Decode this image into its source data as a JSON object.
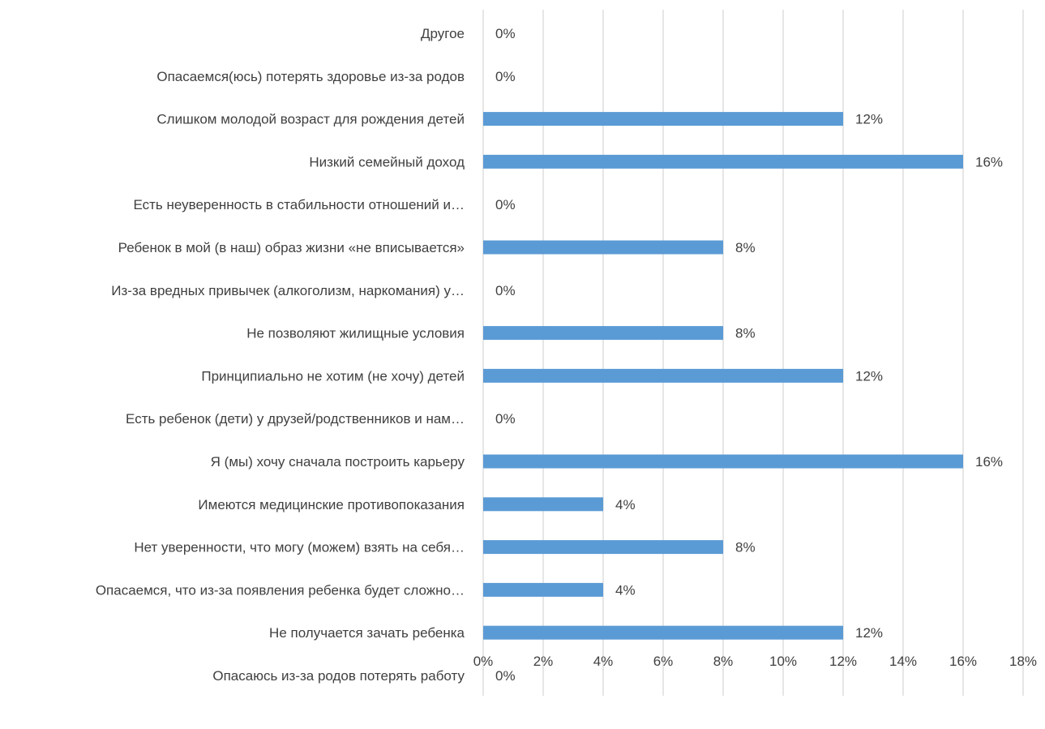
{
  "chart_data": {
    "type": "bar",
    "orientation": "horizontal",
    "title": "",
    "xlabel": "",
    "ylabel": "",
    "xlim": [
      0,
      18
    ],
    "grid": true,
    "legend": "none",
    "ticks": [
      "0%",
      "2%",
      "4%",
      "6%",
      "8%",
      "10%",
      "12%",
      "14%",
      "16%",
      "18%"
    ],
    "categories": [
      "Другое",
      "Опасаемся(юсь) потерять здоровье из-за родов",
      "Слишком молодой возраст для рождения детей",
      "Низкий семейный доход",
      "Есть неуверенность в стабильности отношений и…",
      "Ребенок в мой (в наш) образ жизни «не вписывается»",
      "Из-за вредных привычек (алкоголизм, наркомания) у…",
      "Не позволяют жилищные условия",
      "Принципиально не хотим (не хочу) детей",
      "Есть ребенок (дети) у друзей/родственников и нам…",
      "Я (мы) хочу сначала построить карьеру",
      "Имеются медицинские противопоказания",
      "Нет уверенности, что могу (можем) взять на себя…",
      "Опасаемся, что из-за появления ребенка будет сложно…",
      "Не получается зачать ребенка",
      "Опасаюсь из-за родов потерять работу"
    ],
    "values": [
      0,
      0,
      12,
      16,
      0,
      8,
      0,
      8,
      12,
      0,
      16,
      4,
      8,
      4,
      12,
      0
    ],
    "data_labels": [
      "0%",
      "0%",
      "12%",
      "16%",
      "0%",
      "8%",
      "0%",
      "8%",
      "12%",
      "0%",
      "16%",
      "4%",
      "8%",
      "4%",
      "12%",
      "0%"
    ],
    "bar_color": "#5b9bd5",
    "grid_color": "#d9d9d9",
    "text_color": "#404040"
  }
}
